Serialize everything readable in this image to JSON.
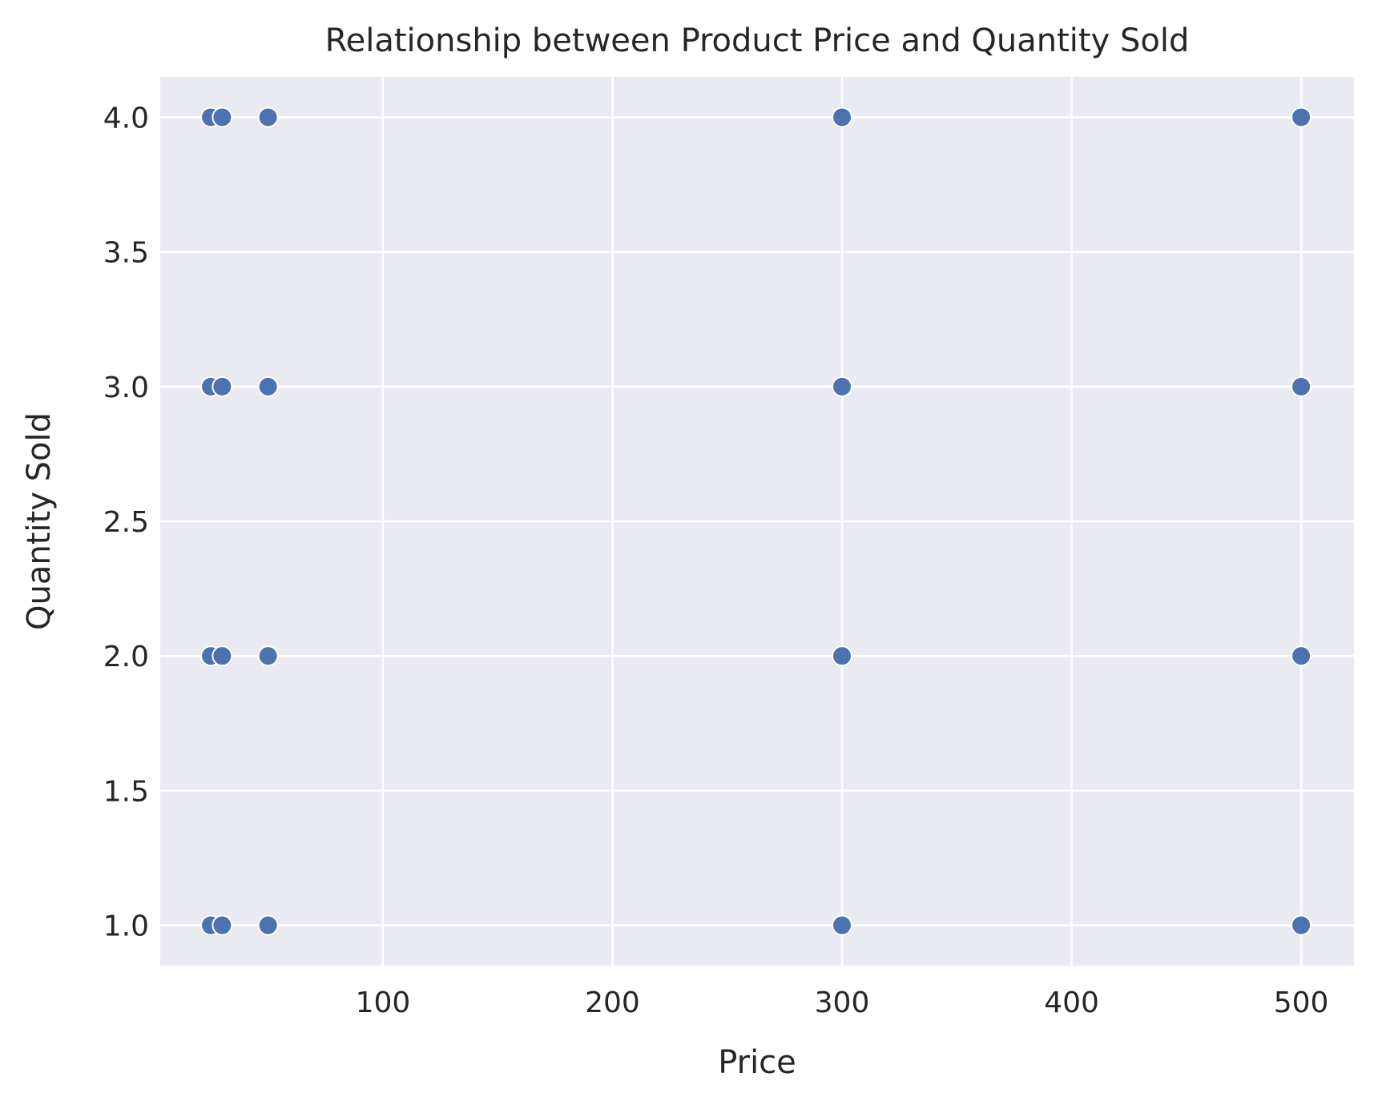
{
  "chart_data": {
    "type": "scatter",
    "title": "Relationship between Product Price and Quantity Sold",
    "xlabel": "Price",
    "ylabel": "Quantity Sold",
    "xlim": [
      3,
      523
    ],
    "ylim": [
      0.85,
      4.15
    ],
    "xticks": [
      100,
      200,
      300,
      400,
      500
    ],
    "yticks": [
      1.0,
      1.5,
      2.0,
      2.5,
      3.0,
      3.5,
      4.0
    ],
    "grid": true,
    "colors": {
      "background": "#EAEAF2",
      "grid": "#FFFFFF",
      "marker": "#4C72B0",
      "marker_edge": "#FFFFFF"
    },
    "points": [
      {
        "x": 25,
        "y": 4
      },
      {
        "x": 30,
        "y": 4
      },
      {
        "x": 50,
        "y": 4
      },
      {
        "x": 300,
        "y": 4
      },
      {
        "x": 500,
        "y": 4
      },
      {
        "x": 25,
        "y": 3
      },
      {
        "x": 30,
        "y": 3
      },
      {
        "x": 50,
        "y": 3
      },
      {
        "x": 300,
        "y": 3
      },
      {
        "x": 500,
        "y": 3
      },
      {
        "x": 25,
        "y": 2
      },
      {
        "x": 30,
        "y": 2
      },
      {
        "x": 50,
        "y": 2
      },
      {
        "x": 300,
        "y": 2
      },
      {
        "x": 500,
        "y": 2
      },
      {
        "x": 25,
        "y": 1
      },
      {
        "x": 30,
        "y": 1
      },
      {
        "x": 50,
        "y": 1
      },
      {
        "x": 300,
        "y": 1
      },
      {
        "x": 500,
        "y": 1
      }
    ]
  }
}
